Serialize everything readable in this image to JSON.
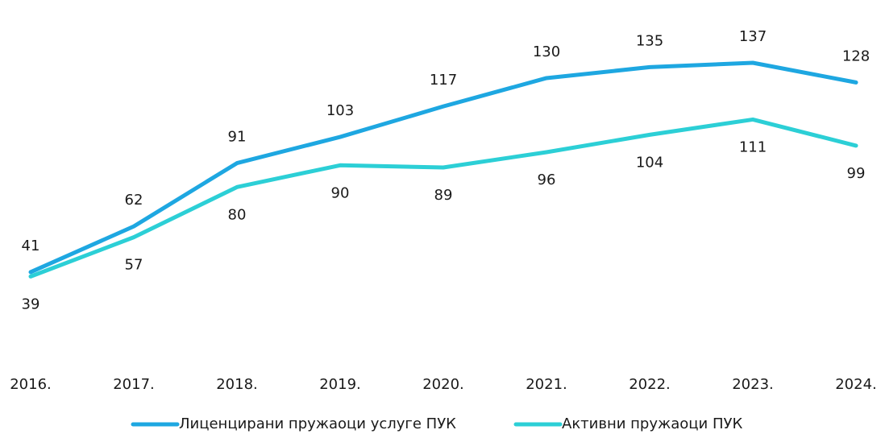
{
  "chart_data": {
    "type": "line",
    "categories": [
      "2016.",
      "2017.",
      "2018.",
      "2019.",
      "2020.",
      "2021.",
      "2022.",
      "2023.",
      "2024."
    ],
    "series": [
      {
        "name": "Лиценцирани пружаоци услуге ПУК",
        "color": "#1ea7e1",
        "values": [
          41,
          62,
          91,
          103,
          117,
          130,
          135,
          137,
          128
        ]
      },
      {
        "name": "Активни пружаоци ПУК",
        "color": "#2ccfd6",
        "values": [
          39,
          57,
          80,
          90,
          89,
          96,
          104,
          111,
          99
        ]
      }
    ]
  }
}
